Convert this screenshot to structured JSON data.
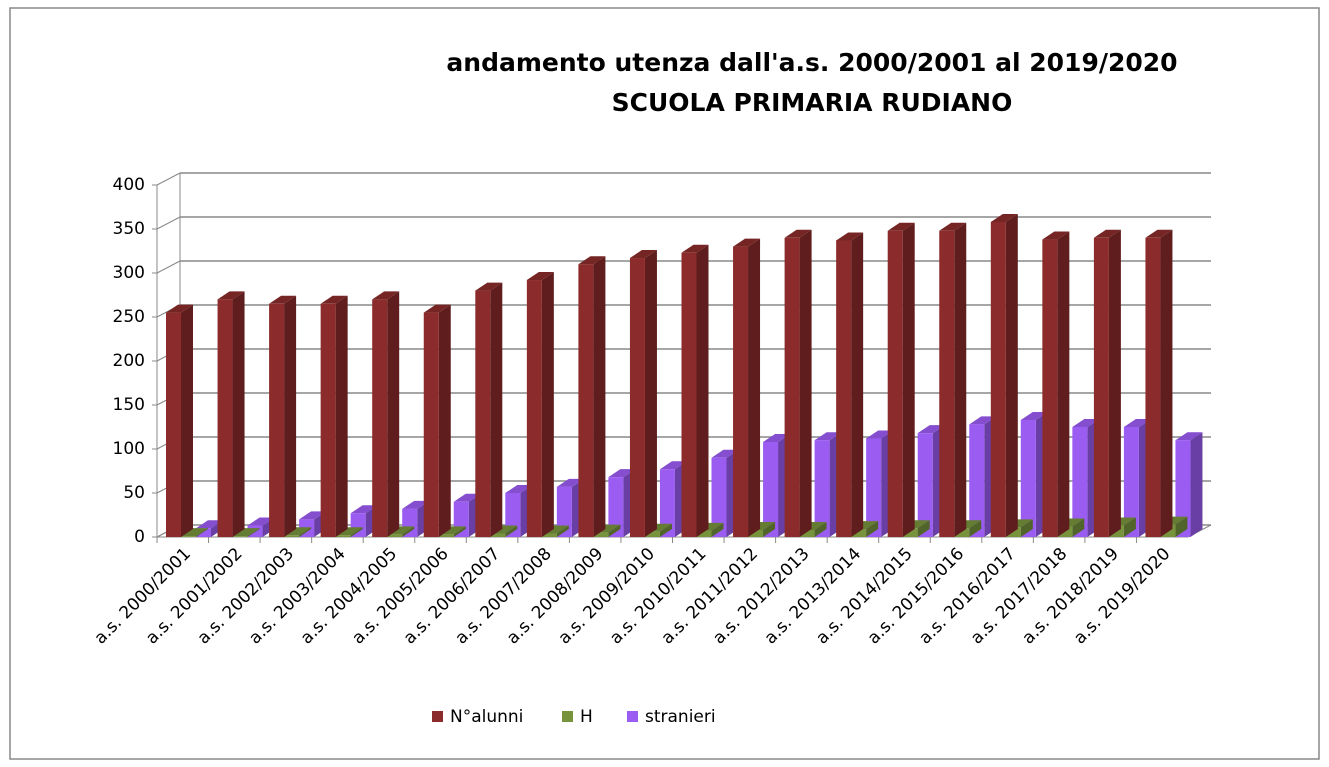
{
  "chart_data": {
    "type": "bar3d",
    "title": "andamento utenza dall'a.s. 2000/2001 al 2019/2020",
    "subtitle": "SCUOLA PRIMARIA  RUDIANO",
    "categories": [
      "a.s. 2000/2001",
      "a.s. 2001/2002",
      "a.s. 2002/2003",
      "a.s. 2003/2004",
      "a.s. 2004/2005",
      "a.s. 2005/2006",
      "a.s. 2006/2007",
      "a.s. 2007/2008",
      "a.s. 2008/2009",
      "a.s. 2009/2010",
      "a.s. 2010/2011",
      "a.s. 2011/2012",
      "a.s. 2012/2013",
      "a.s. 2013/2014",
      "a.s. 2014/2015",
      "a.s. 2015/2016",
      "a.s. 2016/2017",
      "a.s. 2017/2018",
      "a.s. 2018/2019",
      "a.s. 2019/2020"
    ],
    "series": [
      {
        "name": "N°alunni",
        "color": "#8b2b2b",
        "values": [
          255,
          270,
          265,
          265,
          270,
          255,
          280,
          292,
          310,
          317,
          323,
          330,
          340,
          337,
          348,
          348,
          358,
          338,
          340,
          340
        ]
      },
      {
        "name": "H",
        "color": "#77933c",
        "values": [
          1,
          1,
          2,
          2,
          3,
          3,
          4,
          4,
          5,
          6,
          7,
          8,
          8,
          9,
          10,
          10,
          11,
          12,
          13,
          14
        ]
      },
      {
        "name": "stranieri",
        "color": "#9b5cf2",
        "values": [
          10,
          13,
          20,
          27,
          32,
          40,
          50,
          57,
          68,
          77,
          90,
          108,
          110,
          112,
          118,
          128,
          133,
          125,
          125,
          110
        ]
      }
    ],
    "ylim": [
      0,
      400
    ],
    "yticks": [
      0,
      50,
      100,
      150,
      200,
      250,
      300,
      350,
      400
    ],
    "grid": true,
    "legend": "bottom"
  }
}
